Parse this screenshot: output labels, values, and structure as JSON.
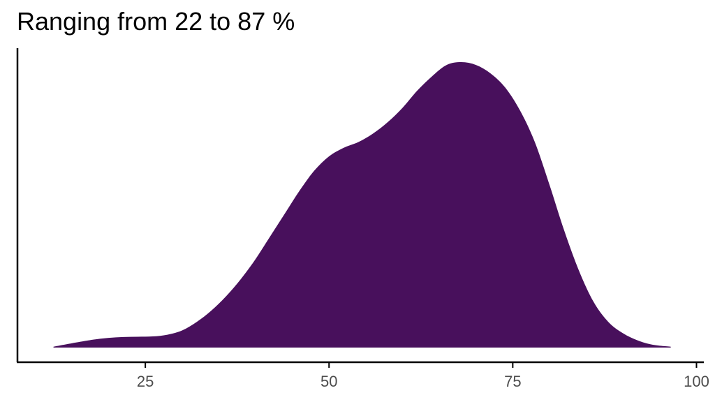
{
  "chart_data": {
    "type": "area",
    "title": "Ranging from 22 to 87 %",
    "xlabel": "",
    "ylabel": "",
    "xlim": [
      7.6,
      101
    ],
    "ylim": [
      0,
      1
    ],
    "x_ticks": [
      25,
      50,
      75,
      100
    ],
    "x_tick_labels": [
      "25",
      "50",
      "75",
      "100"
    ],
    "y_ticks": [],
    "grid": false,
    "legend": "none",
    "fill_color": "#48105C",
    "series": [
      {
        "x": [
          12.5,
          15,
          18,
          20,
          22,
          24,
          26,
          28,
          30,
          32,
          34,
          36,
          38,
          40,
          42,
          44,
          46,
          48,
          50,
          52,
          54,
          56,
          58,
          60,
          62,
          64,
          66,
          68,
          70,
          72,
          74,
          76,
          78,
          80,
          82,
          84,
          86,
          88,
          90,
          92,
          94,
          96.5
        ],
        "y": [
          0.003,
          0.015,
          0.028,
          0.034,
          0.037,
          0.038,
          0.039,
          0.045,
          0.06,
          0.09,
          0.13,
          0.18,
          0.24,
          0.31,
          0.39,
          0.47,
          0.55,
          0.62,
          0.67,
          0.7,
          0.72,
          0.75,
          0.79,
          0.84,
          0.9,
          0.95,
          0.99,
          1.0,
          0.99,
          0.96,
          0.91,
          0.83,
          0.72,
          0.57,
          0.41,
          0.27,
          0.16,
          0.09,
          0.05,
          0.025,
          0.01,
          0.003
        ]
      }
    ]
  }
}
